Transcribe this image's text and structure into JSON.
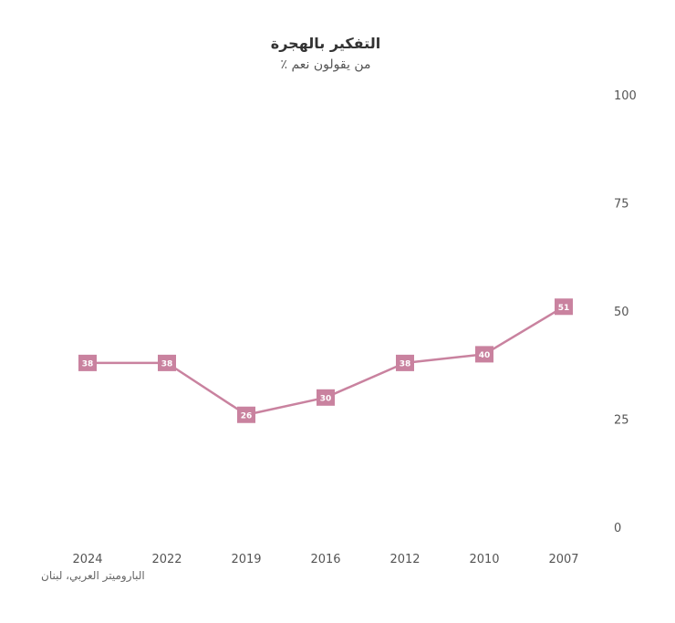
{
  "chart_data": {
    "type": "line",
    "title": "التفكير بالهجرة",
    "subtitle": "٪ من يقولون نعم",
    "source": "الباروميتر العربي، لبنان",
    "categories": [
      "2024",
      "2022",
      "2019",
      "2016",
      "2012",
      "2010",
      "2007"
    ],
    "series": [
      {
        "values": [
          38,
          38,
          26,
          30,
          38,
          40,
          51
        ]
      }
    ],
    "y_ticks": [
      "0",
      "25",
      "50",
      "75",
      "100"
    ],
    "ylim": [
      0,
      100
    ],
    "y_axis_side": "right",
    "x_order": "reversed",
    "grid": false,
    "colors": {
      "line": "#c9829f",
      "marker": "#c9829f",
      "label_text": "#ffffff"
    }
  }
}
